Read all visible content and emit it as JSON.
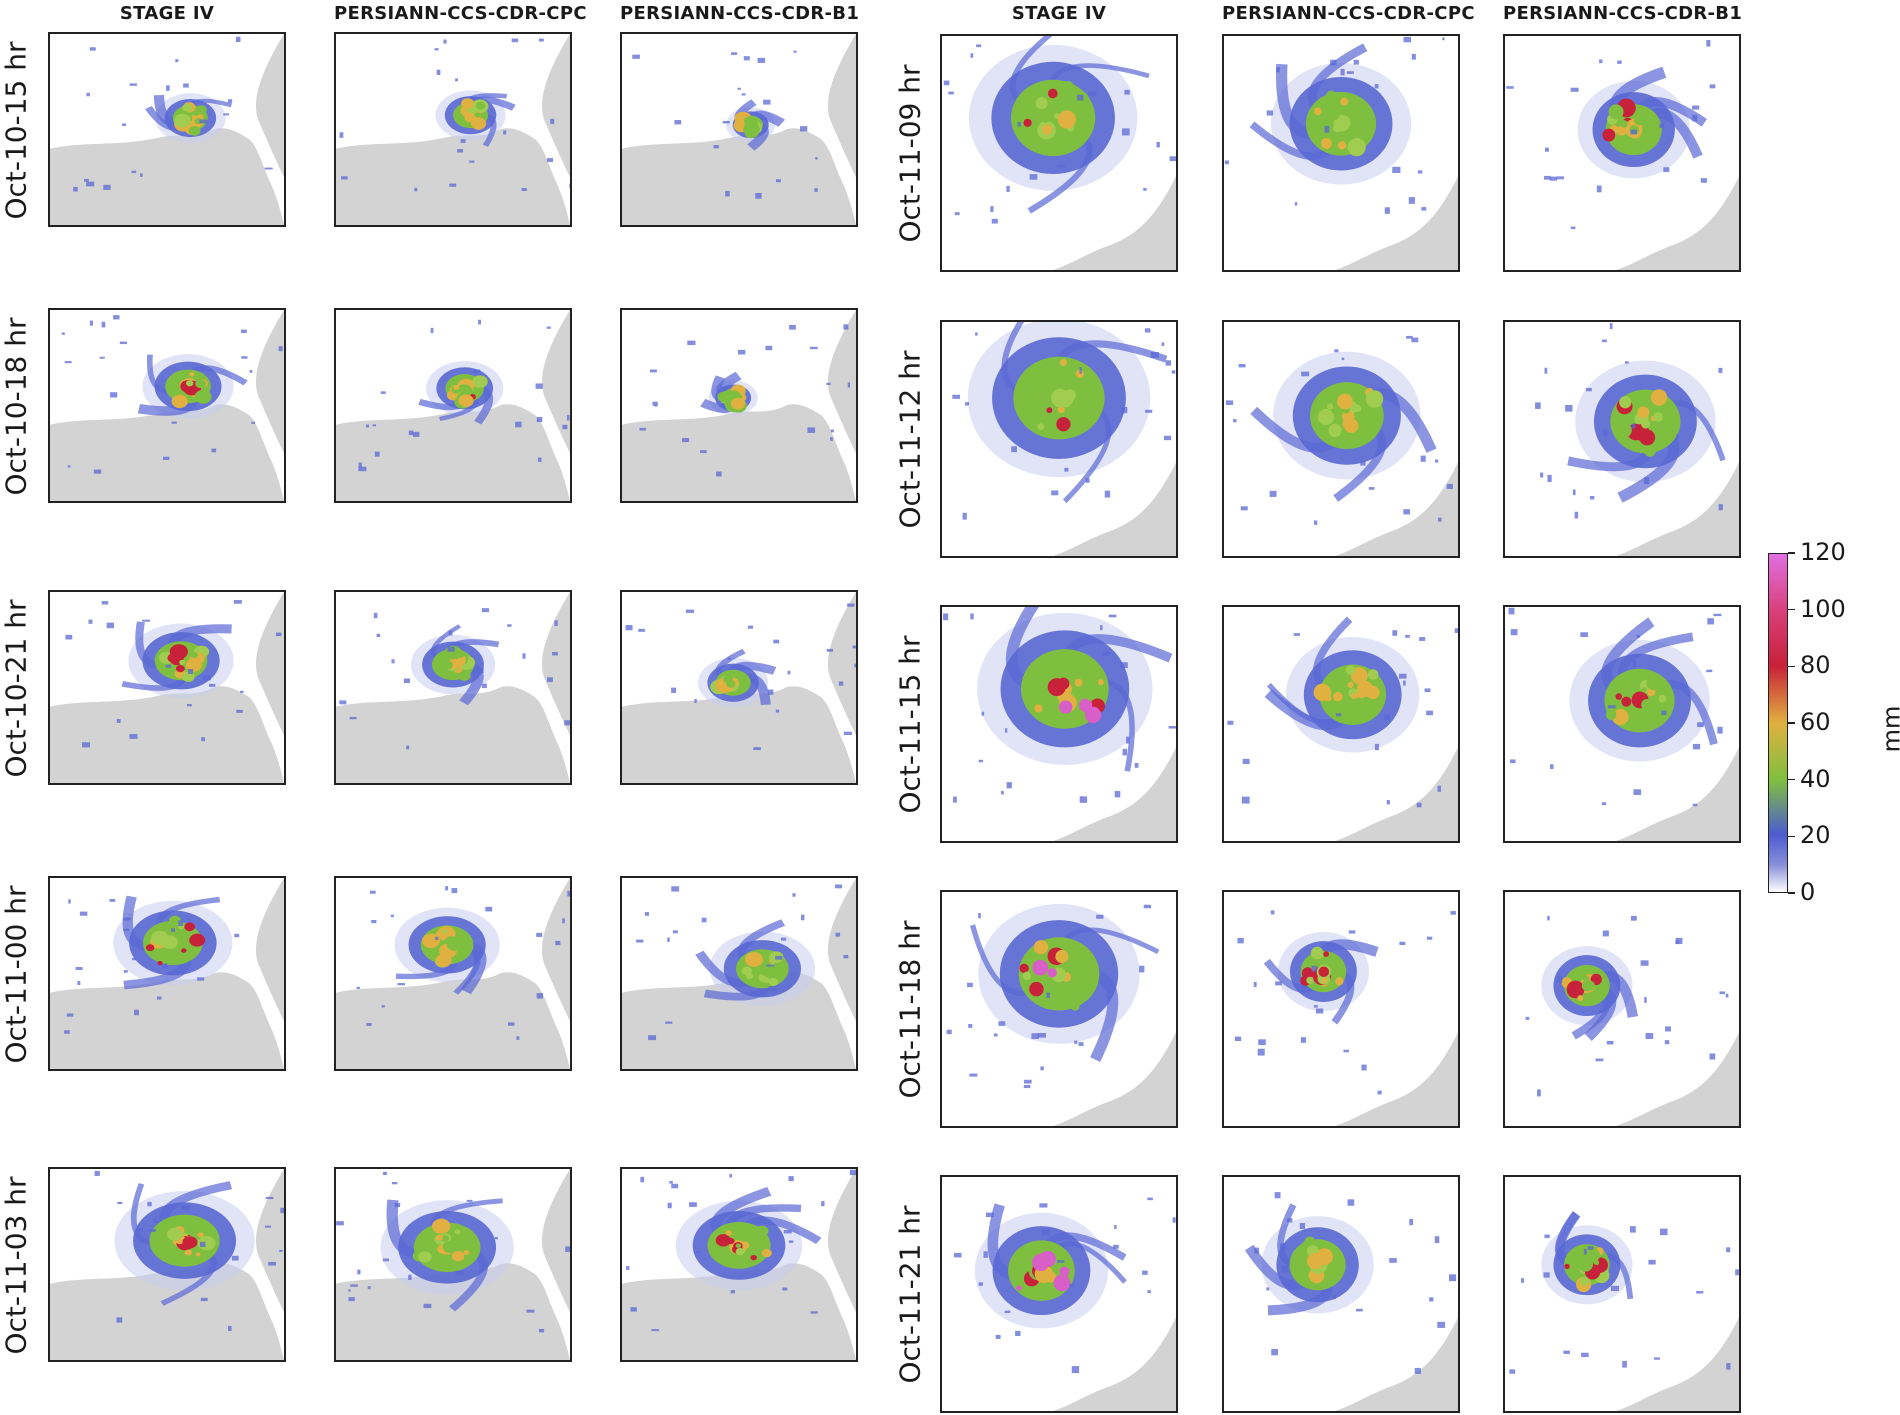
{
  "columns": {
    "left": [
      "STAGE IV",
      "PERSIANN-CCS-CDR-CPC",
      "PERSIANN-CCS-CDR-B1"
    ],
    "right": [
      "STAGE IV",
      "PERSIANN-CCS-CDR-CPC",
      "PERSIANN-CCS-CDR-B1"
    ]
  },
  "rows": {
    "left": [
      "Oct-10-15 hr",
      "Oct-10-18 hr",
      "Oct-10-21 hr",
      "Oct-11-00 hr",
      "Oct-11-03 hr"
    ],
    "right": [
      "Oct-11-09 hr",
      "Oct-11-12 hr",
      "Oct-11-15 hr",
      "Oct-11-18 hr",
      "Oct-11-21 hr"
    ]
  },
  "colorbar": {
    "label": "mm",
    "min": 0,
    "max": 120,
    "ticks": [
      "120",
      "100",
      "80",
      "60",
      "40",
      "20",
      "0"
    ],
    "colors": [
      "#ffffff",
      "#4c5bd1",
      "#7fbf3f",
      "#e0b040",
      "#c8213a",
      "#d85ec8"
    ]
  },
  "chart_data": {
    "type": "heatmap",
    "colorbar_label": "mm",
    "colorbar_range": [
      0,
      120
    ],
    "colorbar_ticks": [
      0,
      20,
      40,
      60,
      80,
      100,
      120
    ],
    "column_titles_left": [
      "STAGE IV",
      "PERSIANN-CCS-CDR-CPC",
      "PERSIANN-CCS-CDR-B1"
    ],
    "column_titles_right": [
      "STAGE IV",
      "PERSIANN-CCS-CDR-CPC",
      "PERSIANN-CCS-CDR-B1"
    ],
    "row_labels_left": [
      "Oct-10-15 hr",
      "Oct-10-18 hr",
      "Oct-10-21 hr",
      "Oct-11-00 hr",
      "Oct-11-03 hr"
    ],
    "row_labels_right": [
      "Oct-11-09 hr",
      "Oct-11-12 hr",
      "Oct-11-15 hr",
      "Oct-11-18 hr",
      "Oct-11-21 hr"
    ]
  }
}
